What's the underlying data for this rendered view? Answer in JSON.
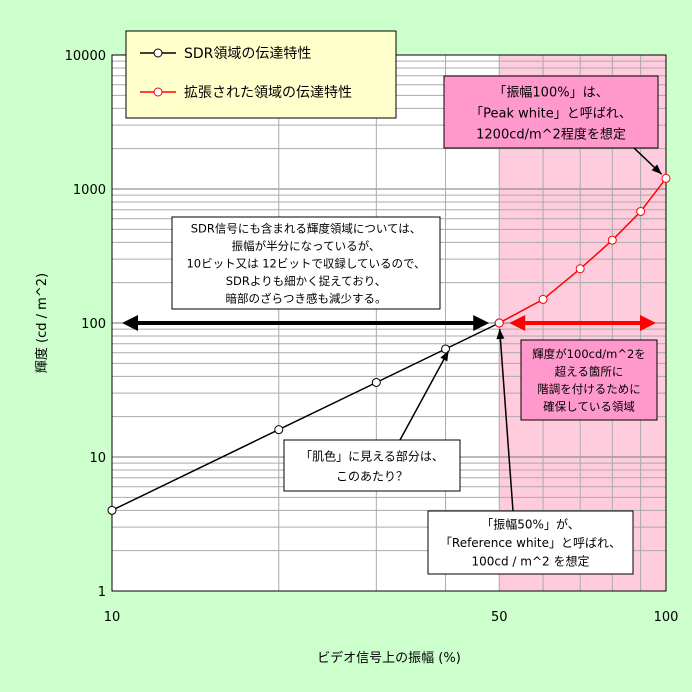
{
  "chart_data": {
    "type": "line",
    "title": "",
    "xlabel": "ビデオ信号上の振幅 (%)",
    "ylabel": "輝度 (cd / m^2)",
    "x_scale": "log",
    "y_scale": "log",
    "xlim": [
      10,
      100
    ],
    "ylim": [
      1,
      10000
    ],
    "x_tick_labels": [
      "10",
      "50",
      "100"
    ],
    "y_tick_labels": [
      "1",
      "10",
      "100",
      "1000",
      "10000"
    ],
    "grid": true,
    "legend_position": "top-left",
    "shaded_region": {
      "x_from": 50,
      "x_to": 100,
      "color": "#ffccdd"
    },
    "series": [
      {
        "name": "SDR領域の伝達特性",
        "color": "#000000",
        "x": [
          10,
          20,
          30,
          40,
          50
        ],
        "y": [
          4,
          16,
          36,
          64,
          100
        ]
      },
      {
        "name": "拡張された領域の伝達特性",
        "color": "#ff0000",
        "x": [
          50,
          60,
          70,
          80,
          90,
          100
        ],
        "y": [
          100,
          150,
          254,
          415,
          680,
          1200
        ]
      }
    ],
    "arrows": [
      {
        "name": "sdr-range-arrow",
        "from": [
          10,
          100
        ],
        "to": [
          50,
          100
        ],
        "color": "#000000",
        "both": true
      },
      {
        "name": "extended-range-arrow",
        "from": [
          50,
          100
        ],
        "to": [
          100,
          100
        ],
        "color": "#ff0000",
        "both": true
      }
    ],
    "annotations": [
      {
        "name": "peak-white-note",
        "lines": [
          "「振幅100%」は、",
          "「Peak white」と呼ばれ、",
          "1200cd/m^2程度を想定"
        ],
        "bg": "#ff99cc",
        "pointer": [
          100,
          1200
        ]
      },
      {
        "name": "sdr-signal-note",
        "lines": [
          "SDR信号にも含まれる輝度領域については、",
          "振幅が半分になっているが、",
          "10ビット又は 12ビットで収録しているので、",
          "SDRよりも細かく捉えており、",
          "暗部のざらつき感も減少する。"
        ],
        "bg": "#ffffff",
        "pointer": null
      },
      {
        "name": "extended-region-note",
        "lines": [
          "輝度が100cd/m^2を",
          "超える箇所に",
          "階調を付けるために",
          "確保している領域"
        ],
        "bg": "#ff99cc",
        "pointer": null
      },
      {
        "name": "skin-tone-note",
        "lines": [
          "「肌色」に見える部分は、",
          "このあたり？"
        ],
        "bg": "#ffffff",
        "pointer": [
          41,
          68
        ]
      },
      {
        "name": "reference-white-note",
        "lines": [
          "「振幅50%」が、",
          "「Reference white」と呼ばれ、",
          "100cd / m^2 を想定"
        ],
        "bg": "#ffffff",
        "pointer": [
          50,
          100
        ]
      }
    ]
  }
}
